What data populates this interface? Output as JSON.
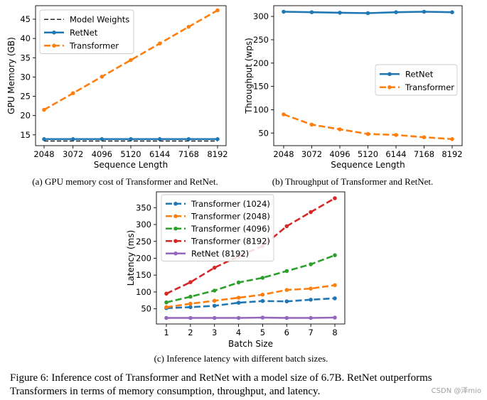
{
  "figure_caption": "Figure 6: Inference cost of Transformer and RetNet with a model size of 6.7B. RetNet outperforms Transformers in terms of memory consumption, throughput, and latency.",
  "watermark": "CSDN @泽mio",
  "colors": {
    "blue": "#1f77b4",
    "orange": "#ff7f0e",
    "green": "#2ca02c",
    "red": "#d62728",
    "purple": "#9467bd",
    "black": "#000000"
  },
  "chart_data": [
    {
      "type": "line",
      "caption": "(a) GPU memory cost of Transformer and RetNet.",
      "xlabel": "Sequence Length",
      "ylabel": "GPU Memory (GB)",
      "x": [
        2048,
        3072,
        4096,
        5120,
        6144,
        7168,
        8192
      ],
      "xticks": [
        "2048",
        "3072",
        "4096",
        "5120",
        "6144",
        "7168",
        "8192"
      ],
      "yticks": [
        15,
        20,
        25,
        30,
        35,
        40,
        45
      ],
      "ylim": [
        12.2,
        48.5
      ],
      "legend": "top-left",
      "grid": false,
      "series": [
        {
          "name": "Model Weights",
          "color": "#000000",
          "style": "dashed-thin",
          "marker": false,
          "values": [
            13.4,
            13.4,
            13.4,
            13.4,
            13.4,
            13.4,
            13.4
          ]
        },
        {
          "name": "RetNet",
          "color": "#1f77b4",
          "style": "solid",
          "marker": true,
          "values": [
            13.9,
            13.9,
            13.9,
            13.9,
            13.9,
            13.9,
            13.9
          ]
        },
        {
          "name": "Transformer",
          "color": "#ff7f0e",
          "style": "dashed",
          "marker": true,
          "values": [
            21.5,
            25.8,
            30.1,
            34.4,
            38.7,
            43.0,
            47.3
          ]
        }
      ]
    },
    {
      "type": "line",
      "caption": "(b) Throughput of Transformer and RetNet.",
      "xlabel": "Sequence Length",
      "ylabel": "Throughput (wps)",
      "x": [
        2048,
        3072,
        4096,
        5120,
        6144,
        7168,
        8192
      ],
      "xticks": [
        "2048",
        "3072",
        "4096",
        "5120",
        "6144",
        "7168",
        "8192"
      ],
      "yticks": [
        50,
        100,
        150,
        200,
        250,
        300
      ],
      "ylim": [
        23,
        323
      ],
      "legend": "center-right",
      "grid": false,
      "series": [
        {
          "name": "RetNet",
          "color": "#1f77b4",
          "style": "solid",
          "marker": true,
          "values": [
            310,
            309,
            308,
            307,
            309,
            310,
            309
          ]
        },
        {
          "name": "Transformer",
          "color": "#ff7f0e",
          "style": "dashed",
          "marker": true,
          "values": [
            90,
            68,
            58,
            48,
            46,
            41,
            37
          ]
        }
      ]
    },
    {
      "type": "line",
      "caption": "(c) Inference latency with different batch sizes.",
      "xlabel": "Batch Size",
      "ylabel": "Latency (ms)",
      "x": [
        1,
        2,
        3,
        4,
        5,
        6,
        7,
        8
      ],
      "xticks": [
        "1",
        "2",
        "3",
        "4",
        "5",
        "6",
        "7",
        "8"
      ],
      "yticks": [
        50,
        100,
        150,
        200,
        250,
        300,
        350
      ],
      "ylim": [
        5,
        397
      ],
      "legend": "top-left",
      "grid": false,
      "series": [
        {
          "name": "Transformer (1024)",
          "color": "#1f77b4",
          "style": "dashed",
          "marker": true,
          "values": [
            52,
            55,
            59,
            68,
            73,
            72,
            77,
            81
          ]
        },
        {
          "name": "Transformer (2048)",
          "color": "#ff7f0e",
          "style": "dashed",
          "marker": true,
          "values": [
            55,
            65,
            74,
            83,
            92,
            106,
            110,
            120
          ]
        },
        {
          "name": "Transformer (4096)",
          "color": "#2ca02c",
          "style": "dashed",
          "marker": true,
          "values": [
            69,
            86,
            104,
            128,
            142,
            162,
            182,
            209
          ]
        },
        {
          "name": "Transformer (8192)",
          "color": "#d62728",
          "style": "dashed",
          "marker": true,
          "values": [
            95,
            129,
            172,
            206,
            236,
            295,
            337,
            378
          ]
        },
        {
          "name": "RetNet (8192)",
          "color": "#9467bd",
          "style": "solid",
          "marker": true,
          "values": [
            23,
            23,
            23,
            23,
            24,
            23,
            23,
            24
          ]
        }
      ]
    }
  ]
}
